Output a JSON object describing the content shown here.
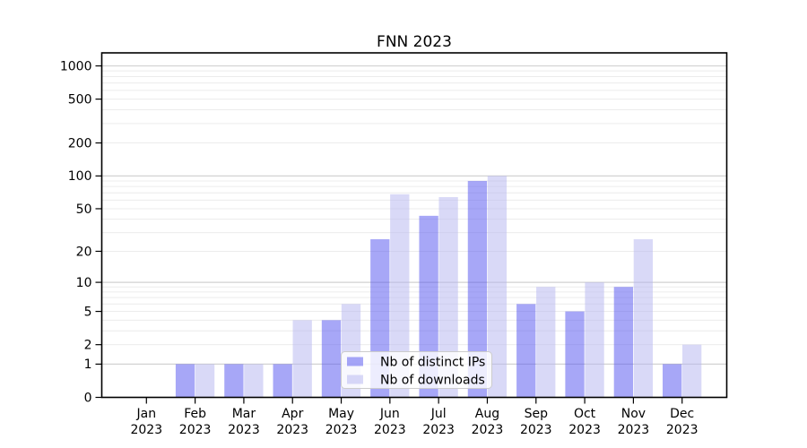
{
  "chart_data": {
    "type": "bar",
    "title": "FNN 2023",
    "categories": [
      "Jan",
      "Feb",
      "Mar",
      "Apr",
      "May",
      "Jun",
      "Jul",
      "Aug",
      "Sep",
      "Oct",
      "Nov",
      "Dec"
    ],
    "category_year": "2023",
    "series": [
      {
        "name": "Nb of distinct IPs",
        "color": "#5050f0",
        "fill_opacity": 0.5,
        "values": [
          0,
          1,
          1,
          1,
          4,
          26,
          43,
          90,
          6,
          5,
          9,
          1
        ]
      },
      {
        "name": "Nb of downloads",
        "color": "#b4b4f0",
        "fill_opacity": 0.5,
        "values": [
          0,
          1,
          1,
          4,
          6,
          68,
          64,
          100,
          9,
          10,
          26,
          2
        ]
      }
    ],
    "xlabel": "",
    "ylabel": "",
    "y_axis": {
      "scale": "log1p",
      "tick_labels": [
        0,
        1,
        2,
        5,
        10,
        20,
        50,
        100,
        200,
        500,
        1000
      ],
      "major_gridlines": [
        1,
        10,
        100,
        1000
      ],
      "minor_gridlines": [
        2,
        3,
        4,
        5,
        6,
        7,
        8,
        9,
        20,
        30,
        40,
        50,
        60,
        70,
        80,
        90,
        200,
        300,
        400,
        500,
        600,
        700,
        800,
        900
      ],
      "range": [
        0,
        1300
      ]
    },
    "legend": {
      "position": "lower center"
    },
    "grid": true
  },
  "colors": {
    "major_gridline": "#d2d2d2",
    "minor_gridline": "#ececec",
    "axis": "#000000",
    "legend_border": "#cccccc",
    "legend_background": "rgba(255,255,255,0.8)"
  }
}
